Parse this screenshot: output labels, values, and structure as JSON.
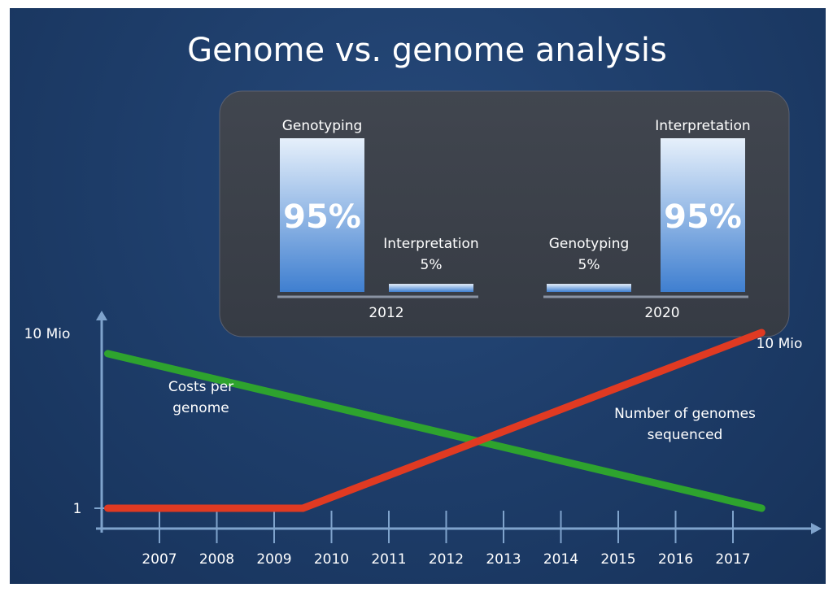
{
  "title": "Genome vs. genome analysis",
  "colors": {
    "background": "#1e3d6b",
    "panel": "#3a3f48",
    "bar_top": "#e6f0fb",
    "bar_bottom": "#3f7fd0",
    "costs_line": "#2ea32e",
    "genomes_line": "#e03a22",
    "axis": "#7fa3cc"
  },
  "chart_data": [
    {
      "type": "bar",
      "groups": [
        {
          "year": "2012",
          "bars": [
            {
              "category": "Genotyping",
              "value": 95,
              "value_label": "95%",
              "label": "Genotyping"
            },
            {
              "category": "Interpretation",
              "value": 5,
              "value_label": "5%",
              "label": "Interpretation"
            }
          ]
        },
        {
          "year": "2020",
          "bars": [
            {
              "category": "Genotyping",
              "value": 5,
              "value_label": "5%",
              "label": "Genotyping"
            },
            {
              "category": "Interpretation",
              "value": 95,
              "value_label": "95%",
              "label": "Interpretation"
            }
          ]
        }
      ]
    },
    {
      "type": "line",
      "x_ticks": [
        "2007",
        "2008",
        "2009",
        "2010",
        "2011",
        "2012",
        "2013",
        "2014",
        "2015",
        "2016",
        "2017"
      ],
      "y_ticks": [
        "1",
        "10 Mio"
      ],
      "series": [
        {
          "name": "Costs per genome",
          "color": "#2ea32e",
          "x": [
            2006.1,
            2017.5
          ],
          "y": [
            0.88,
            0.0
          ]
        },
        {
          "name": "Number of genomes sequenced",
          "color": "#e03a22",
          "x": [
            2006.1,
            2009.5,
            2017.5
          ],
          "y": [
            0.0,
            0.0,
            1.0
          ]
        }
      ],
      "annotations": {
        "end_label": "10 Mio",
        "costs_label": [
          "Costs per",
          "genome"
        ],
        "genomes_label": [
          "Number of genomes",
          "sequenced"
        ]
      },
      "grid": false
    }
  ]
}
